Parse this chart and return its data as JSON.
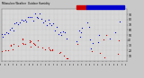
{
  "bg_color": "#c8c8c8",
  "plot_bg_color": "#d8d8d8",
  "humidity_color": "#0000cc",
  "temp_color": "#cc0000",
  "ylim": [
    0,
    100
  ],
  "grid_color": "#aaaaaa",
  "marker_size": 0.8,
  "yticks": [
    10,
    20,
    30,
    40,
    50,
    60,
    70,
    80,
    90
  ],
  "legend_temp_color": "#cc0000",
  "legend_humid_color": "#0000cc"
}
